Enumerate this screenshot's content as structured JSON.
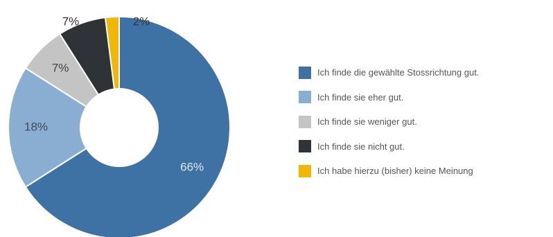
{
  "chart_data": {
    "type": "pie",
    "variant": "donut",
    "slices": [
      {
        "label": "Ich finde die gewählte Stossrichtung gut.",
        "value": 66,
        "display": "66%",
        "color": "#3f72a4",
        "label_color": "#dde6f0"
      },
      {
        "label": "Ich finde sie eher gut.",
        "value": 18,
        "display": "18%",
        "color": "#8aaed2",
        "label_color": "#3d4a5a"
      },
      {
        "label": "Ich finde sie weniger gut.",
        "value": 7,
        "display": "7%",
        "color": "#c4c4c4",
        "label_color": "#444444"
      },
      {
        "label": "Ich finde sie nicht gut.",
        "value": 7,
        "display": "7%",
        "color": "#2f3237",
        "label_color": "#333333"
      },
      {
        "label": "Ich habe hierzu (bisher) keine Meinung",
        "value": 2,
        "display": "2%",
        "color": "#f2b705",
        "label_color": "#333333"
      }
    ],
    "legend_position": "right"
  }
}
